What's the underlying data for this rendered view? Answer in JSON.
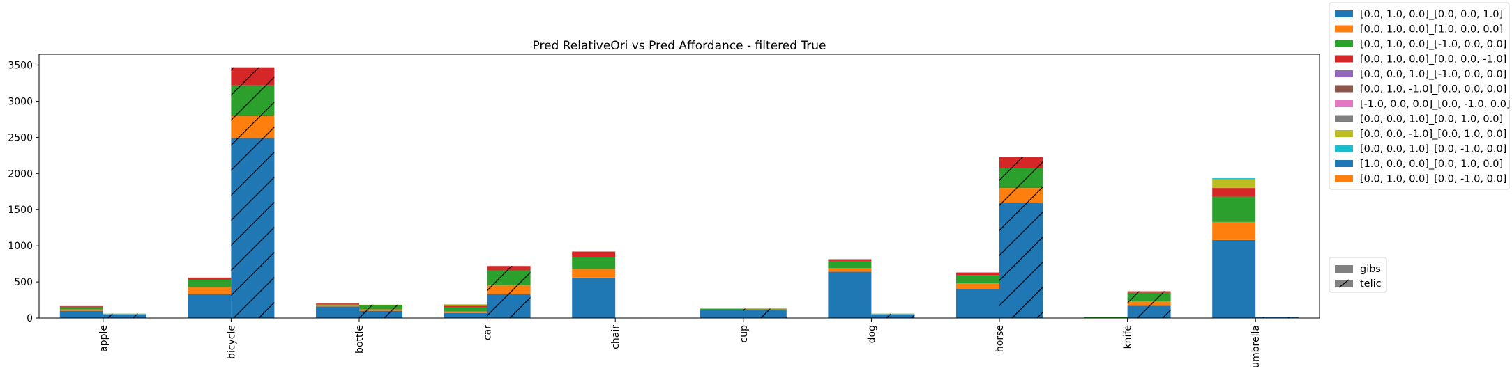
{
  "chart_data": {
    "type": "bar",
    "stacked": true,
    "title": "Pred RelativeOri vs Pred Affordance - filtered True",
    "xlabel": "",
    "ylabel": "",
    "ylim": [
      0,
      3650
    ],
    "yticks": [
      0,
      500,
      1000,
      1500,
      2000,
      2500,
      3000,
      3500
    ],
    "categories": [
      "apple",
      "bicycle",
      "bottle",
      "car",
      "chair",
      "cup",
      "dog",
      "horse",
      "knife",
      "umbrella"
    ],
    "groups": [
      {
        "name": "gibs",
        "hatch": false
      },
      {
        "name": "telic",
        "hatch": true
      }
    ],
    "series": [
      {
        "name": "[0.0, 1.0, 0.0]_[0.0, 0.0, 1.0]",
        "color": "#1f77b4",
        "gibs": [
          100,
          330,
          160,
          70,
          560,
          110,
          640,
          400,
          0,
          1080
        ],
        "telic": [
          50,
          2490,
          100,
          330,
          5,
          115,
          50,
          1590,
          170,
          10
        ]
      },
      {
        "name": "[0.0, 1.0, 0.0]_[1.0, 0.0, 0.0]",
        "color": "#ff7f0e",
        "gibs": [
          20,
          100,
          20,
          20,
          120,
          0,
          50,
          80,
          0,
          250
        ],
        "telic": [
          5,
          310,
          20,
          120,
          0,
          5,
          5,
          210,
          60,
          0
        ]
      },
      {
        "name": "[0.0, 1.0, 0.0]_[-1.0, 0.0, 0.0]",
        "color": "#2ca02c",
        "gibs": [
          30,
          100,
          10,
          60,
          160,
          20,
          100,
          110,
          10,
          350
        ],
        "telic": [
          5,
          420,
          60,
          210,
          0,
          10,
          5,
          280,
          120,
          0
        ]
      },
      {
        "name": "[0.0, 1.0, 0.0]_[0.0, 0.0, -1.0]",
        "color": "#d62728",
        "gibs": [
          10,
          30,
          10,
          20,
          80,
          0,
          20,
          40,
          0,
          120
        ],
        "telic": [
          0,
          250,
          0,
          60,
          0,
          0,
          0,
          150,
          20,
          0
        ]
      },
      {
        "name": "[0.0, 0.0, 1.0]_[-1.0, 0.0, 0.0]",
        "color": "#9467bd",
        "gibs": [
          0,
          0,
          0,
          0,
          0,
          0,
          0,
          0,
          0,
          0
        ],
        "telic": [
          0,
          0,
          0,
          0,
          0,
          0,
          0,
          0,
          0,
          0
        ]
      },
      {
        "name": "[0.0, 1.0, -1.0]_[0.0, 0.0, 0.0]",
        "color": "#8c564b",
        "gibs": [
          5,
          0,
          5,
          0,
          0,
          0,
          5,
          0,
          0,
          0
        ],
        "telic": [
          0,
          0,
          0,
          0,
          0,
          0,
          0,
          0,
          0,
          0
        ]
      },
      {
        "name": "[-1.0, 0.0, 0.0]_[0.0, -1.0, 0.0]",
        "color": "#e377c2",
        "gibs": [
          0,
          0,
          0,
          0,
          0,
          0,
          0,
          0,
          0,
          0
        ],
        "telic": [
          0,
          0,
          0,
          0,
          0,
          0,
          0,
          0,
          0,
          0
        ]
      },
      {
        "name": "[0.0, 0.0, 1.0]_[0.0, 1.0, 0.0]",
        "color": "#7f7f7f",
        "gibs": [
          0,
          0,
          0,
          0,
          0,
          0,
          0,
          0,
          0,
          0
        ],
        "telic": [
          0,
          0,
          0,
          0,
          0,
          0,
          0,
          0,
          0,
          0
        ]
      },
      {
        "name": "[0.0, 0.0, -1.0]_[0.0, 1.0, 0.0]",
        "color": "#bcbd22",
        "gibs": [
          0,
          0,
          0,
          20,
          0,
          0,
          0,
          0,
          0,
          120
        ],
        "telic": [
          0,
          0,
          5,
          0,
          0,
          0,
          0,
          0,
          0,
          0
        ]
      },
      {
        "name": "[0.0, 0.0, 1.0]_[0.0, -1.0, 0.0]",
        "color": "#17becf",
        "gibs": [
          0,
          0,
          0,
          0,
          0,
          0,
          0,
          0,
          0,
          15
        ],
        "telic": [
          0,
          0,
          0,
          0,
          0,
          0,
          0,
          0,
          0,
          0
        ]
      },
      {
        "name": "[1.0, 0.0, 0.0]_[0.0, 1.0, 0.0]",
        "color": "#1f77b4",
        "gibs": [
          0,
          0,
          0,
          0,
          0,
          0,
          0,
          0,
          0,
          0
        ],
        "telic": [
          0,
          0,
          0,
          0,
          0,
          0,
          0,
          0,
          0,
          0
        ]
      },
      {
        "name": "[0.0, 1.0, 0.0]_[0.0, -1.0, 0.0]",
        "color": "#ff7f0e",
        "gibs": [
          0,
          0,
          0,
          0,
          0,
          0,
          0,
          0,
          0,
          0
        ],
        "telic": [
          0,
          0,
          0,
          0,
          0,
          0,
          0,
          0,
          0,
          0
        ]
      }
    ],
    "legend_placement": "outside-right-top",
    "group_legend_placement": "outside-right-bottom",
    "grid": false
  }
}
